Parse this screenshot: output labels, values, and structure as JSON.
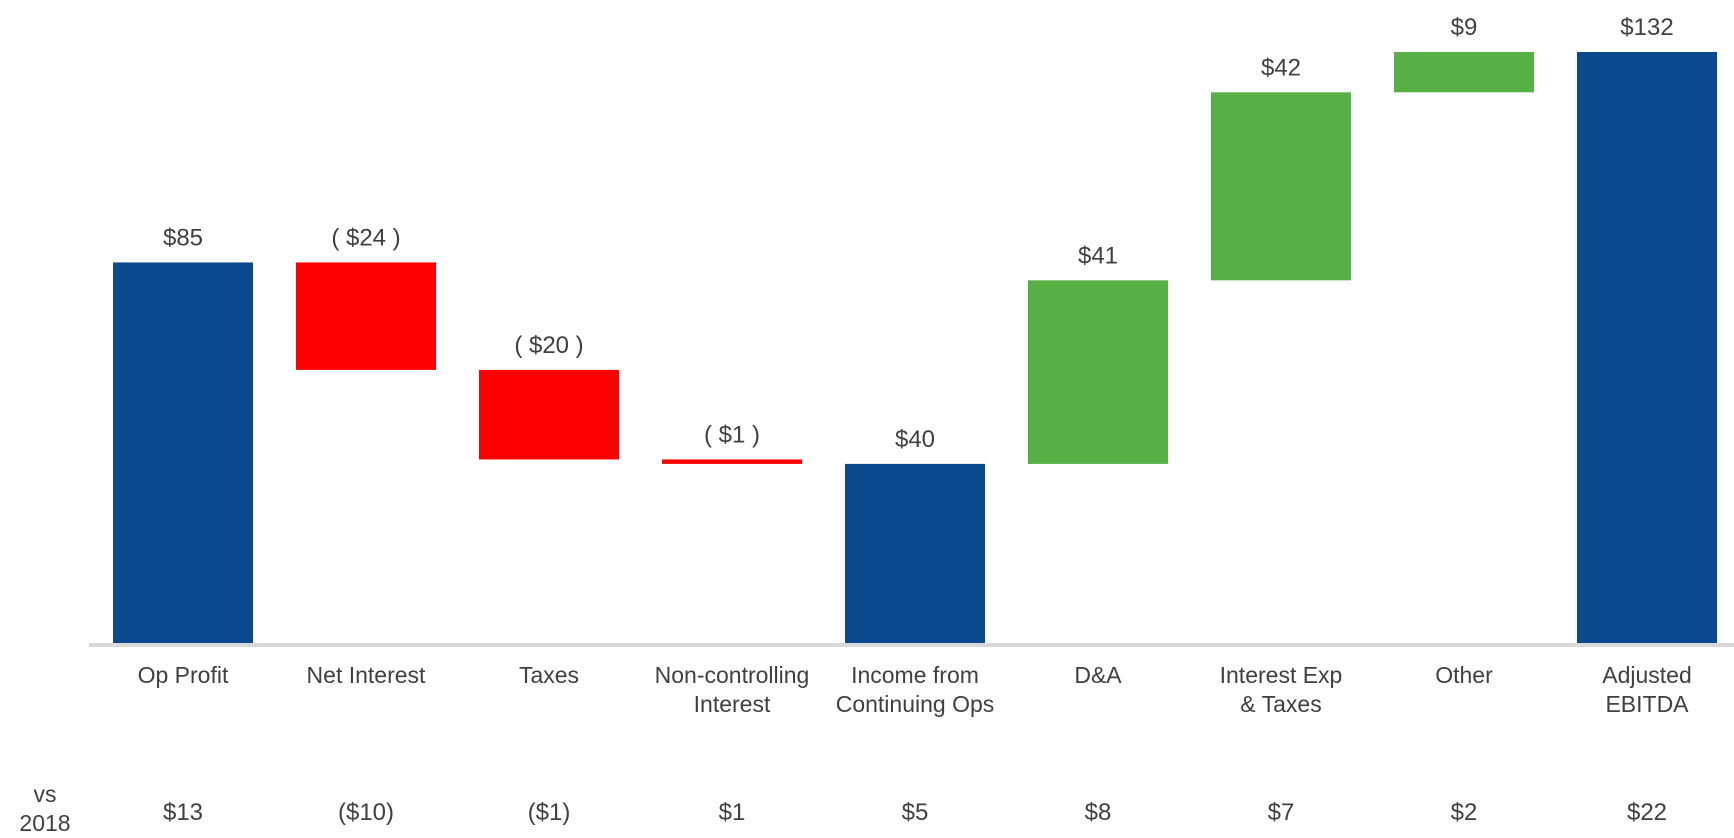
{
  "chart_data": {
    "type": "waterfall",
    "categories": [
      "Op Profit",
      "Net Interest",
      "Taxes",
      "Non-controlling\nInterest",
      "Income from\nContinuing Ops",
      "D&A",
      "Interest Exp\n& Taxes",
      "Other",
      "Adjusted\nEBITDA"
    ],
    "values": [
      85,
      -24,
      -20,
      -1,
      40,
      41,
      42,
      9,
      132
    ],
    "value_labels": [
      "$85",
      "( $24 )",
      "( $20 )",
      "( $1 )",
      "$40",
      "$41",
      "$42",
      "$9",
      "$132"
    ],
    "totals": [
      true,
      false,
      false,
      false,
      true,
      false,
      false,
      false,
      true
    ],
    "colors": {
      "total": "#0b4a8f",
      "negative": "#ff0000",
      "positive": "#56b046"
    },
    "ylim": [
      0,
      132
    ],
    "comparison": {
      "label": "vs\n2018",
      "values": [
        13,
        -10,
        -1,
        1,
        5,
        8,
        7,
        2,
        22
      ],
      "value_labels": [
        "$13",
        "($10)",
        "($1)",
        "$1",
        "$5",
        "$8",
        "$7",
        "$2",
        "$22"
      ]
    }
  }
}
